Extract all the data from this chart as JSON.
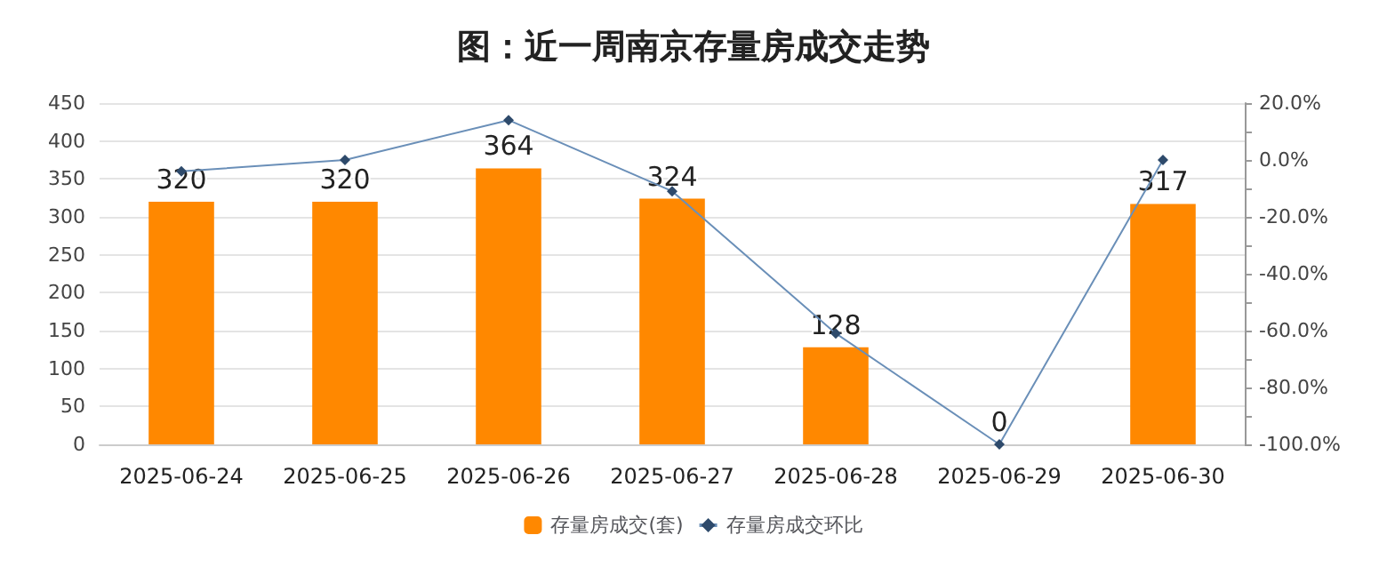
{
  "chart_data": {
    "type": "bar",
    "title": "图：近一周南京存量房成交走势",
    "categories": [
      "2025-06-24",
      "2025-06-25",
      "2025-06-26",
      "2025-06-27",
      "2025-06-28",
      "2025-06-29",
      "2025-06-30"
    ],
    "series": [
      {
        "name": "存量房成交(套)",
        "color": "#ff8800",
        "values": [
          320,
          320,
          364,
          324,
          128,
          0,
          317
        ],
        "data_labels": true
      },
      {
        "name": "存量房成交环比",
        "type": "line",
        "axis": "y2",
        "color": "#6a8fb8",
        "values": [
          -4,
          0,
          14,
          -11,
          -61,
          -100,
          0
        ],
        "marker": "diamond"
      }
    ],
    "ylim": [
      0,
      450
    ],
    "yticks": [
      0,
      50,
      100,
      150,
      200,
      250,
      300,
      350,
      400,
      450
    ],
    "y2lim": [
      -100,
      20
    ],
    "y2ticks": [
      {
        "value": 20,
        "label": "20.0%"
      },
      {
        "value": 10,
        "label": null
      },
      {
        "value": 0,
        "label": "0.0%"
      },
      {
        "value": -10,
        "label": null
      },
      {
        "value": -20,
        "label": "-20.0%"
      },
      {
        "value": -30,
        "label": null
      },
      {
        "value": -40,
        "label": "-40.0%"
      },
      {
        "value": -50,
        "label": null
      },
      {
        "value": -60,
        "label": "-60.0%"
      },
      {
        "value": -70,
        "label": null
      },
      {
        "value": -80,
        "label": "-80.0%"
      },
      {
        "value": -90,
        "label": null
      },
      {
        "value": -100,
        "label": "-100.0%"
      }
    ],
    "grid": "y",
    "legend": "bottom"
  }
}
